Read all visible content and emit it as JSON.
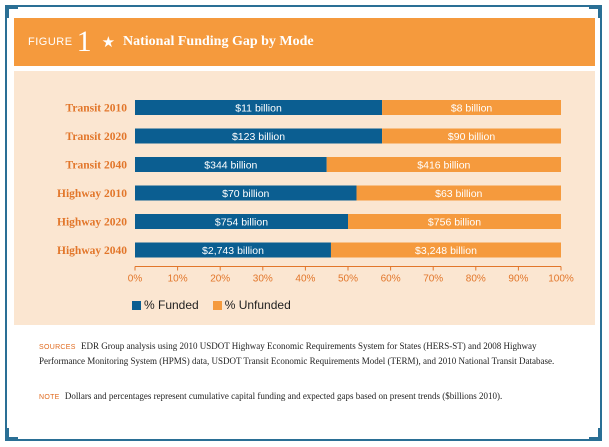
{
  "header": {
    "figure_word": "FIGURE",
    "figure_number": "1",
    "title": "National Funding Gap by Mode"
  },
  "colors": {
    "funded": "#0b5e91",
    "unfunded": "#f59a3d",
    "label_orange": "#e2762a",
    "background": "#fbe6d1"
  },
  "chart_data": {
    "type": "bar",
    "orientation": "horizontal",
    "stacked": true,
    "categories": [
      "Transit 2010",
      "Transit 2020",
      "Transit 2040",
      "Highway 2010",
      "Highway 2020",
      "Highway 2040"
    ],
    "series": [
      {
        "name": "% Funded",
        "values": [
          58,
          58,
          45,
          52,
          50,
          46
        ],
        "labels": [
          "$11 billion",
          "$123 billion",
          "$344 billion",
          "$70 billion",
          "$754 billion",
          "$2,743 billion"
        ]
      },
      {
        "name": "% Unfunded",
        "values": [
          42,
          42,
          55,
          48,
          50,
          54
        ],
        "labels": [
          "$8 billion",
          "$90 billion",
          "$416 billion",
          "$63 billion",
          "$756 billion",
          "$3,248 billion"
        ]
      }
    ],
    "xlim": [
      0,
      100
    ],
    "xticks": [
      "0%",
      "10%",
      "20%",
      "30%",
      "40%",
      "50%",
      "60%",
      "70%",
      "80%",
      "90%",
      "100%"
    ],
    "legend_position": "bottom-left"
  },
  "sources": {
    "tag": "SOURCES",
    "text": "EDR Group analysis using 2010 USDOT Highway Economic Requirements System for States (HERS-ST) and 2008 Highway Performance Monitoring System (HPMS) data, USDOT Transit Economic Requirements Model (TERM), and 2010 National Transit Database."
  },
  "note": {
    "tag": "NOTE",
    "text": "Dollars and percentages represent cumulative capital funding and expected gaps based on present trends ($billions 2010)."
  }
}
